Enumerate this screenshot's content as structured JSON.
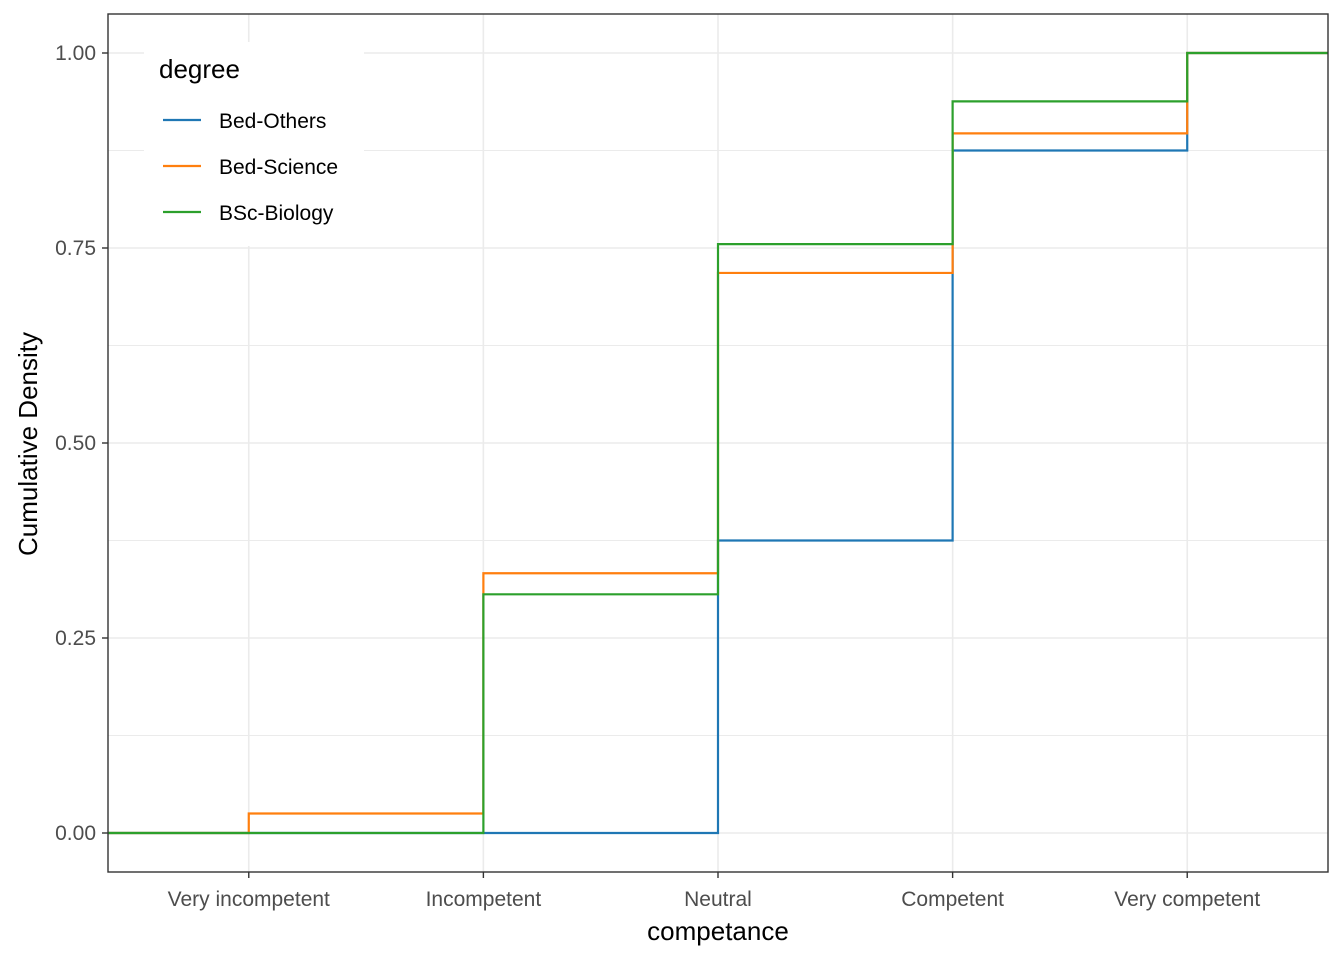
{
  "chart_data": {
    "type": "line",
    "step": true,
    "xlabel": "competance",
    "ylabel": "Cumulative Density",
    "categories": [
      "Very incompetent",
      "Incompetent",
      "Neutral",
      "Competent",
      "Very competent"
    ],
    "ylim": [
      -0.05,
      1.05
    ],
    "yticks": [
      0.0,
      0.25,
      0.5,
      0.75,
      1.0
    ],
    "ytick_labels": [
      "0.00",
      "0.25",
      "0.50",
      "0.75",
      "1.00"
    ],
    "grid": true,
    "legend": {
      "title": "degree",
      "position": "top-left-inside"
    },
    "series": [
      {
        "name": "Bed-Others",
        "color": "#1f77b4",
        "values": [
          0.0,
          0.0,
          0.375,
          0.875,
          1.0
        ]
      },
      {
        "name": "Bed-Science",
        "color": "#ff7f0e",
        "values": [
          0.025,
          0.333,
          0.718,
          0.897,
          1.0
        ]
      },
      {
        "name": "BSc-Biology",
        "color": "#2ca02c",
        "values": [
          0.0,
          0.306,
          0.755,
          0.938,
          1.0
        ]
      }
    ]
  }
}
